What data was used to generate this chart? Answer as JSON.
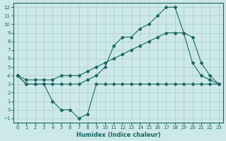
{
  "xlabel": "Humidex (Indice chaleur)",
  "bg_color": "#cce8e8",
  "grid_color": "#aacccc",
  "line_color": "#1a6666",
  "xlim": [
    -0.5,
    23.5
  ],
  "ylim": [
    -1.5,
    12.5
  ],
  "xticks": [
    0,
    1,
    2,
    3,
    4,
    5,
    6,
    7,
    8,
    9,
    10,
    11,
    12,
    13,
    14,
    15,
    16,
    17,
    18,
    19,
    20,
    21,
    22,
    23
  ],
  "yticks": [
    -1,
    0,
    1,
    2,
    3,
    4,
    5,
    6,
    7,
    8,
    9,
    10,
    11,
    12
  ],
  "series": [
    {
      "x": [
        0,
        1,
        2,
        3,
        4,
        5,
        6,
        7,
        8,
        9,
        10,
        11,
        12,
        13,
        14,
        15,
        16,
        17,
        18,
        19,
        20,
        21,
        22,
        23
      ],
      "y": [
        4,
        3,
        3,
        3,
        3,
        3,
        3,
        3,
        3.5,
        4,
        5,
        7.5,
        8.5,
        8.5,
        9.5,
        10,
        11,
        12,
        12,
        9,
        5.5,
        4,
        3.5,
        3
      ]
    },
    {
      "x": [
        0,
        1,
        2,
        3,
        4,
        5,
        6,
        7,
        8,
        9,
        10,
        11,
        12,
        13,
        14,
        15,
        16,
        17,
        18,
        19,
        20,
        21,
        22,
        23
      ],
      "y": [
        4,
        3.5,
        3.5,
        3.5,
        3.5,
        4,
        4,
        4,
        4.5,
        5,
        5.5,
        6,
        6.5,
        7,
        7.5,
        8,
        8.5,
        9,
        9,
        9,
        8.5,
        5.5,
        4,
        3
      ]
    },
    {
      "x": [
        0,
        1,
        2,
        3,
        4,
        5,
        6,
        7,
        8,
        9,
        10,
        11,
        12,
        13,
        14,
        15,
        16,
        17,
        18,
        19,
        20,
        21,
        22,
        23
      ],
      "y": [
        4,
        3,
        3,
        3,
        1,
        0,
        0,
        -1,
        -0.5,
        3,
        3,
        3,
        3,
        3,
        3,
        3,
        3,
        3,
        3,
        3,
        3,
        3,
        3,
        3
      ]
    }
  ]
}
